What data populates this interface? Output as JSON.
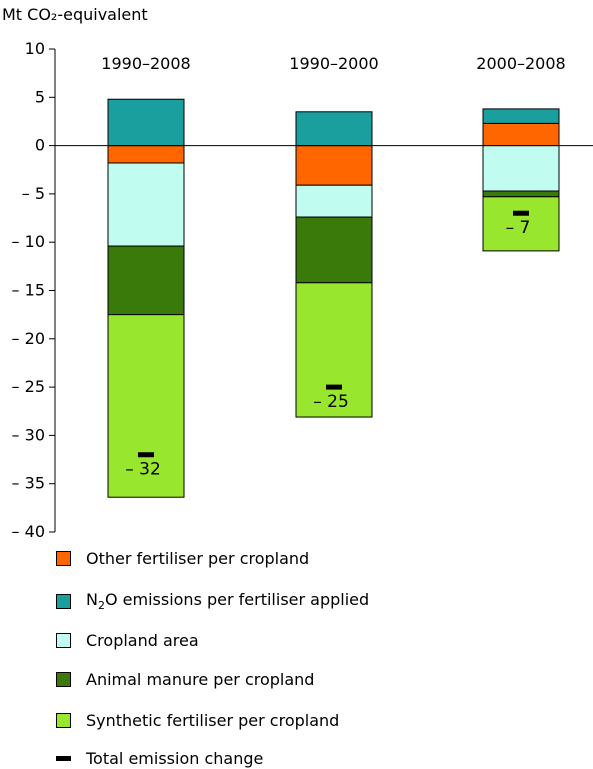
{
  "chart_data": {
    "type": "bar",
    "stacked": true,
    "ylabel": "Mt CO₂-equivalent",
    "ylim": [
      -40,
      10
    ],
    "yticks": [
      10,
      5,
      0,
      -5,
      -10,
      -15,
      -20,
      -25,
      -30,
      -35,
      -40
    ],
    "ytick_labels": [
      "10",
      "5",
      "0",
      "– 5",
      "– 10",
      "– 15",
      "– 20",
      "– 25",
      "– 30",
      "– 35",
      "– 40"
    ],
    "grid": false,
    "legend_position": "bottom",
    "categories": [
      "1990–2008",
      "1990–2000",
      "2000–2008"
    ],
    "series": [
      {
        "name": "Other fertiliser per cropland",
        "color": "#ff6600",
        "values": [
          -1.8,
          -4.1,
          2.3
        ]
      },
      {
        "name": "N2O emissions per fertiliser applied",
        "color": "#1a9e9e",
        "values": [
          4.8,
          3.5,
          1.5
        ]
      },
      {
        "name": "Cropland area",
        "color": "#c0fcf0",
        "values": [
          -8.6,
          -3.3,
          -4.7
        ]
      },
      {
        "name": "Animal manure per cropland",
        "color": "#3a7a0a",
        "values": [
          -7.1,
          -6.8,
          -0.6
        ]
      },
      {
        "name": "Synthetic fertiliser per cropland",
        "color": "#99e62e",
        "values": [
          -18.9,
          -13.9,
          -5.6
        ]
      }
    ],
    "total": {
      "name": "Total emission change",
      "values": [
        -32,
        -25,
        -7
      ],
      "labels": [
        "– 32",
        "– 25",
        "– 7"
      ]
    }
  }
}
